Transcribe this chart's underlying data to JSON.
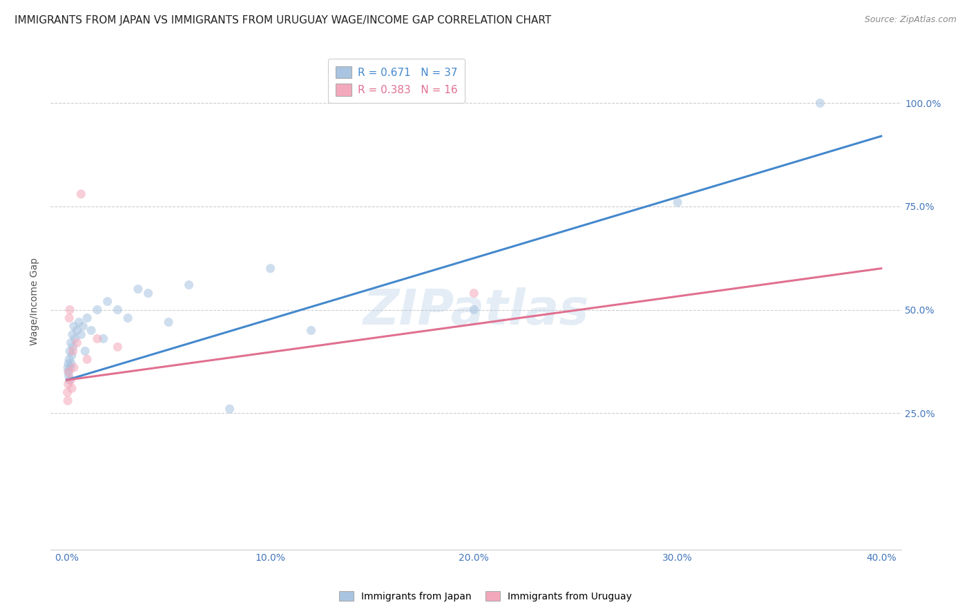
{
  "title": "IMMIGRANTS FROM JAPAN VS IMMIGRANTS FROM URUGUAY WAGE/INCOME GAP CORRELATION CHART",
  "source": "Source: ZipAtlas.com",
  "ylabel": "Wage/Income Gap",
  "x_tick_labels": [
    "0.0%",
    "10.0%",
    "20.0%",
    "30.0%",
    "40.0%"
  ],
  "x_tick_values": [
    0.0,
    10.0,
    20.0,
    30.0,
    40.0
  ],
  "y_tick_labels": [
    "25.0%",
    "50.0%",
    "75.0%",
    "100.0%"
  ],
  "y_tick_values": [
    25.0,
    50.0,
    75.0,
    100.0
  ],
  "xlim": [
    -0.8,
    41.0
  ],
  "ylim": [
    -8.0,
    112.0
  ],
  "japan_color": "#a8c4e0",
  "japan_edge_color": "#6699cc",
  "uruguay_color": "#f4a8bb",
  "uruguay_edge_color": "#cc6688",
  "japan_R": 0.671,
  "japan_N": 37,
  "uruguay_R": 0.383,
  "uruguay_N": 16,
  "watermark": "ZIPatlas",
  "legend_japan_label": "Immigrants from Japan",
  "legend_uruguay_label": "Immigrants from Uruguay",
  "japan_scatter_x": [
    0.05,
    0.07,
    0.08,
    0.1,
    0.12,
    0.13,
    0.15,
    0.18,
    0.2,
    0.22,
    0.25,
    0.28,
    0.3,
    0.35,
    0.4,
    0.5,
    0.6,
    0.7,
    0.8,
    0.9,
    1.0,
    1.2,
    1.5,
    1.8,
    2.0,
    2.5,
    3.0,
    3.5,
    4.0,
    5.0,
    6.0,
    8.0,
    10.0,
    12.0,
    20.0,
    30.0,
    37.0
  ],
  "japan_scatter_y": [
    36,
    35,
    37,
    34,
    38,
    33,
    40,
    36,
    42,
    37,
    39,
    44,
    41,
    46,
    43,
    45,
    47,
    44,
    46,
    40,
    48,
    45,
    50,
    43,
    52,
    50,
    48,
    55,
    54,
    47,
    56,
    26,
    60,
    45,
    50,
    76,
    100
  ],
  "uruguay_scatter_x": [
    0.03,
    0.05,
    0.07,
    0.1,
    0.12,
    0.15,
    0.2,
    0.25,
    0.3,
    0.35,
    0.5,
    0.7,
    1.0,
    1.5,
    2.5,
    20.0
  ],
  "uruguay_scatter_y": [
    30,
    28,
    32,
    35,
    48,
    50,
    33,
    31,
    40,
    36,
    42,
    78,
    38,
    43,
    41,
    54
  ],
  "japan_line_x": [
    0.0,
    40.0
  ],
  "japan_line_y": [
    33.0,
    92.0
  ],
  "uruguay_line_x": [
    0.0,
    40.0
  ],
  "uruguay_line_y": [
    33.0,
    60.0
  ],
  "japan_line_color": "#4488cc",
  "uruguay_line_color": "#e07090",
  "background_color": "#ffffff",
  "grid_color": "#cccccc",
  "title_color": "#222222",
  "tick_label_color": "#4477bb",
  "right_tick_color": "#4477bb",
  "title_fontsize": 11,
  "source_fontsize": 9,
  "scatter_size": 90,
  "scatter_alpha": 0.55,
  "line_width": 2.2
}
